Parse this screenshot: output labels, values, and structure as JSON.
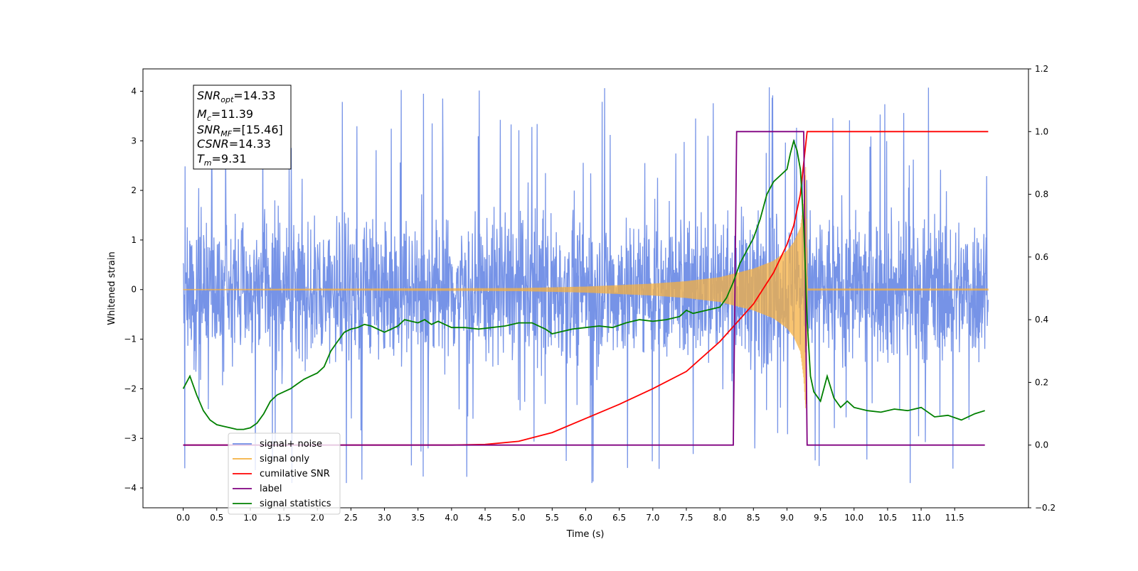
{
  "chart_data": {
    "type": "line",
    "title": "",
    "xlabel": "Time (s)",
    "ylabel": "Whitened strain",
    "y2label": "",
    "xlim": [
      -0.6,
      12.6
    ],
    "ylim": [
      -4.4,
      4.45
    ],
    "y2lim": [
      -0.2,
      1.2
    ],
    "grid": false,
    "legend_position": "lower-left",
    "xticks": [
      "0.0",
      "0.5",
      "1.0",
      "1.5",
      "2.0",
      "2.5",
      "3.0",
      "3.5",
      "4.0",
      "4.5",
      "5.0",
      "5.5",
      "6.0",
      "6.5",
      "7.0",
      "7.5",
      "8.0",
      "8.5",
      "9.0",
      "9.5",
      "10.0",
      "10.5",
      "11.0",
      "11.5"
    ],
    "yticks": [
      "4",
      "3",
      "2",
      "1",
      "0",
      "−1",
      "−2",
      "−3",
      "−4"
    ],
    "y2ticks": [
      "1.2",
      "1.0",
      "0.8",
      "0.6",
      "0.4",
      "0.2",
      "0.0",
      "−0.2"
    ],
    "colors": {
      "noise": "#6f8de6",
      "signal": "#f5b041",
      "cumulative_snr": "#ff0000",
      "label": "#800080",
      "statistics": "#008000"
    },
    "annotation": {
      "snr_opt_base": "SNR",
      "snr_opt_sub": "opt",
      "snr_opt_val": "=14.33",
      "mc_base": "M",
      "mc_sub": "c",
      "mc_val": "=11.39",
      "snr_mf_base": "SNR",
      "snr_mf_sub": "MF",
      "snr_mf_val": "=[15.46]",
      "csnr_base": "CSNR",
      "csnr_val": "=14.33",
      "tm_base": "T",
      "tm_sub": "m",
      "tm_val": "=9.31"
    },
    "legend": [
      {
        "label": "signal+ noise",
        "color": "#6f8de6"
      },
      {
        "label": "signal only",
        "color": "#f5b041"
      },
      {
        "label": "cumilative SNR",
        "color": "#ff0000"
      },
      {
        "label": "label",
        "color": "#800080"
      },
      {
        "label": "signal statistics",
        "color": "#008000"
      }
    ],
    "series": [
      {
        "name": "signal+ noise",
        "axis": "left",
        "note": "noise band roughly +/-1.3 with spikes up to about +/-4",
        "x_range": [
          0.0,
          12.0
        ],
        "envelope": 1.3,
        "max": 4.1,
        "min": -3.9
      },
      {
        "name": "signal only",
        "axis": "left",
        "chirp_end": 9.31,
        "amplitude": [
          [
            0.0,
            0.01
          ],
          [
            5.0,
            0.03
          ],
          [
            6.0,
            0.06
          ],
          [
            7.0,
            0.12
          ],
          [
            7.5,
            0.17
          ],
          [
            8.0,
            0.25
          ],
          [
            8.5,
            0.42
          ],
          [
            8.8,
            0.58
          ],
          [
            9.0,
            0.78
          ],
          [
            9.1,
            0.95
          ],
          [
            9.2,
            1.25
          ],
          [
            9.25,
            1.8
          ],
          [
            9.28,
            2.5
          ],
          [
            9.31,
            0.02
          ],
          [
            12.0,
            0.02
          ]
        ]
      },
      {
        "name": "cumilative SNR",
        "axis": "right",
        "x": [
          0.0,
          4.0,
          4.5,
          5.0,
          5.5,
          6.0,
          6.5,
          7.0,
          7.5,
          8.0,
          8.5,
          8.8,
          9.0,
          9.1,
          9.2,
          9.25,
          9.3,
          12.0
        ],
        "y": [
          0.0,
          0.0,
          0.002,
          0.012,
          0.04,
          0.085,
          0.13,
          0.18,
          0.235,
          0.33,
          0.45,
          0.55,
          0.64,
          0.7,
          0.8,
          0.9,
          1.0,
          1.0
        ]
      },
      {
        "name": "label",
        "axis": "right",
        "x": [
          0.0,
          8.2,
          8.25,
          9.25,
          9.3,
          11.95
        ],
        "y": [
          0.0,
          0.0,
          1.0,
          1.0,
          0.0,
          0.0
        ]
      },
      {
        "name": "signal statistics",
        "axis": "right",
        "x": [
          0.0,
          0.05,
          0.1,
          0.2,
          0.3,
          0.4,
          0.5,
          0.6,
          0.7,
          0.8,
          0.9,
          1.0,
          1.1,
          1.2,
          1.3,
          1.4,
          1.5,
          1.6,
          1.7,
          1.8,
          1.9,
          2.0,
          2.1,
          2.2,
          2.3,
          2.4,
          2.5,
          2.6,
          2.7,
          2.8,
          2.9,
          3.0,
          3.1,
          3.2,
          3.3,
          3.4,
          3.5,
          3.6,
          3.7,
          3.8,
          3.9,
          4.0,
          4.2,
          4.4,
          4.6,
          4.8,
          5.0,
          5.2,
          5.4,
          5.5,
          5.6,
          5.8,
          6.0,
          6.2,
          6.4,
          6.6,
          6.8,
          7.0,
          7.2,
          7.4,
          7.5,
          7.6,
          7.8,
          8.0,
          8.1,
          8.2,
          8.3,
          8.4,
          8.5,
          8.6,
          8.7,
          8.8,
          8.9,
          9.0,
          9.05,
          9.1,
          9.15,
          9.2,
          9.25,
          9.3,
          9.35,
          9.4,
          9.5,
          9.6,
          9.7,
          9.8,
          9.9,
          10.0,
          10.2,
          10.4,
          10.6,
          10.8,
          11.0,
          11.2,
          11.4,
          11.6,
          11.8,
          11.95
        ],
        "y": [
          0.18,
          0.2,
          0.22,
          0.16,
          0.11,
          0.08,
          0.065,
          0.06,
          0.055,
          0.05,
          0.05,
          0.055,
          0.07,
          0.1,
          0.14,
          0.16,
          0.17,
          0.18,
          0.195,
          0.21,
          0.22,
          0.23,
          0.25,
          0.3,
          0.33,
          0.36,
          0.37,
          0.375,
          0.385,
          0.38,
          0.37,
          0.36,
          0.37,
          0.38,
          0.4,
          0.395,
          0.39,
          0.4,
          0.385,
          0.395,
          0.385,
          0.375,
          0.375,
          0.37,
          0.375,
          0.38,
          0.39,
          0.39,
          0.37,
          0.355,
          0.36,
          0.37,
          0.375,
          0.38,
          0.375,
          0.39,
          0.4,
          0.395,
          0.4,
          0.41,
          0.43,
          0.42,
          0.43,
          0.44,
          0.47,
          0.52,
          0.58,
          0.62,
          0.66,
          0.72,
          0.8,
          0.84,
          0.86,
          0.88,
          0.93,
          0.97,
          0.94,
          0.88,
          0.7,
          0.4,
          0.22,
          0.17,
          0.14,
          0.22,
          0.15,
          0.12,
          0.14,
          0.12,
          0.11,
          0.105,
          0.115,
          0.11,
          0.12,
          0.09,
          0.095,
          0.08,
          0.1,
          0.11
        ]
      }
    ]
  }
}
